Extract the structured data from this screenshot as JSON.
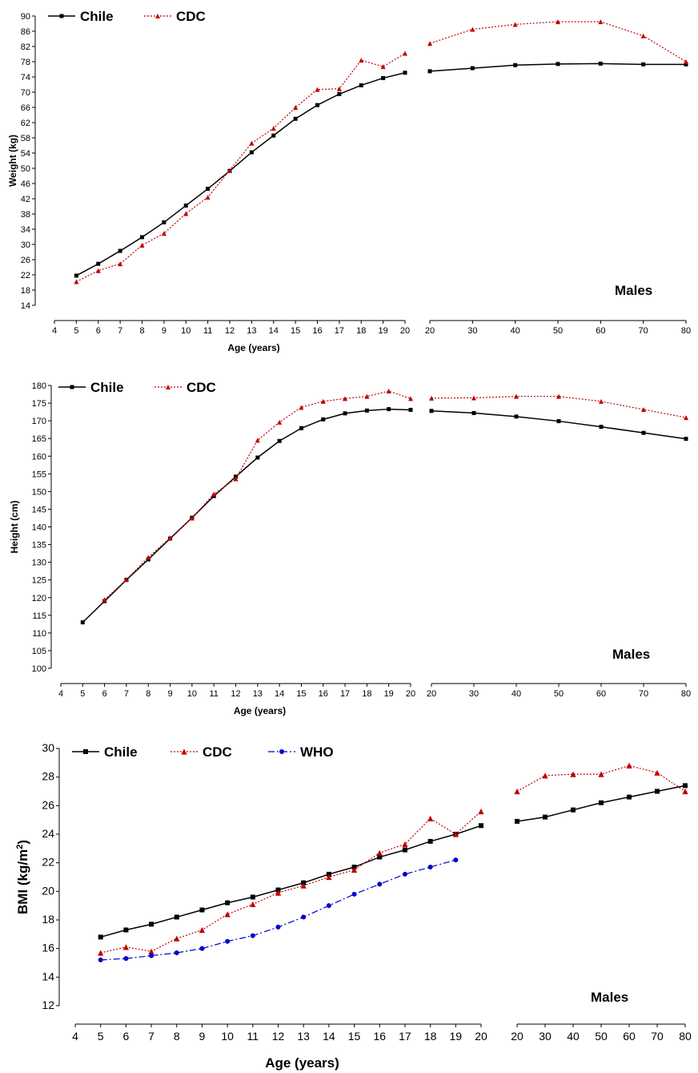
{
  "chart_data": [
    {
      "type": "line",
      "id": "weight",
      "ylabel": "Weight (kg)",
      "xlabel": "Age (years)",
      "annotation": "Males",
      "ylim": [
        14,
        90
      ],
      "yticks": [
        "14",
        "18",
        "22",
        "26",
        "30",
        "34",
        "38",
        "42",
        "46",
        "50",
        "54",
        "58",
        "62",
        "66",
        "70",
        "74",
        "78",
        "82",
        "86",
        "90"
      ],
      "left_xlim": [
        4,
        20
      ],
      "left_xticks": [
        "4",
        "5",
        "6",
        "7",
        "8",
        "9",
        "10",
        "11",
        "12",
        "13",
        "14",
        "15",
        "16",
        "17",
        "18",
        "19",
        "20"
      ],
      "right_xlim": [
        20,
        80
      ],
      "right_xticks": [
        "20",
        "30",
        "40",
        "50",
        "60",
        "70",
        "80"
      ],
      "series": [
        {
          "name": "Chile",
          "color": "#000000",
          "marker": "square",
          "dash": "solid",
          "left": {
            "x": [
              5,
              6,
              7,
              8,
              9,
              10,
              11,
              12,
              13,
              14,
              15,
              16,
              17,
              18,
              19,
              20
            ],
            "y": [
              21.8,
              24.9,
              28.3,
              31.9,
              35.8,
              40.2,
              44.6,
              49.3,
              54.2,
              58.6,
              63,
              66.6,
              69.5,
              71.8,
              73.7,
              75.1
            ]
          },
          "right": {
            "x": [
              20,
              30,
              40,
              50,
              60,
              70,
              80
            ],
            "y": [
              75.5,
              76.3,
              77.1,
              77.4,
              77.5,
              77.3,
              77.3
            ]
          }
        },
        {
          "name": "CDC",
          "color": "#c00000",
          "marker": "triangle",
          "dash": "dotted",
          "left": {
            "x": [
              5,
              6,
              7,
              8,
              9,
              10,
              11,
              12,
              13,
              14,
              15,
              16,
              17,
              18,
              19,
              20
            ],
            "y": [
              20.2,
              23.1,
              24.9,
              29.8,
              32.9,
              38.1,
              42.4,
              49.5,
              56.6,
              60.5,
              66,
              70.7,
              70.9,
              78.4,
              76.7,
              80.2
            ]
          },
          "right": {
            "x": [
              20,
              30,
              40,
              50,
              60,
              70,
              80
            ],
            "y": [
              82.8,
              86.5,
              87.8,
              88.5,
              88.5,
              84.8,
              78
            ]
          }
        }
      ]
    },
    {
      "type": "line",
      "id": "height",
      "ylabel": "Height (cm)",
      "xlabel": "Age (years)",
      "annotation": "Males",
      "ylim": [
        100,
        180
      ],
      "yticks": [
        "100",
        "105",
        "110",
        "115",
        "120",
        "125",
        "130",
        "135",
        "140",
        "145",
        "150",
        "155",
        "160",
        "165",
        "170",
        "175",
        "180"
      ],
      "left_xlim": [
        4,
        20
      ],
      "left_xticks": [
        "4",
        "5",
        "6",
        "7",
        "8",
        "9",
        "10",
        "11",
        "12",
        "13",
        "14",
        "15",
        "16",
        "17",
        "18",
        "19",
        "20"
      ],
      "right_xlim": [
        20,
        80
      ],
      "right_xticks": [
        "20",
        "30",
        "40",
        "50",
        "60",
        "70",
        "80"
      ],
      "series": [
        {
          "name": "Chile",
          "color": "#000000",
          "marker": "square",
          "dash": "solid",
          "left": {
            "x": [
              5,
              6,
              7,
              8,
              9,
              10,
              11,
              12,
              13,
              14,
              15,
              16,
              17,
              18,
              19,
              20
            ],
            "y": [
              113,
              119,
              125,
              130.8,
              136.7,
              142.6,
              148.7,
              154.2,
              159.6,
              164.3,
              167.9,
              170.4,
              172.1,
              172.9,
              173.3,
              173.1
            ]
          },
          "right": {
            "x": [
              20,
              30,
              40,
              50,
              60,
              70,
              80
            ],
            "y": [
              172.8,
              172.2,
              171.2,
              169.9,
              168.3,
              166.6,
              164.9
            ]
          }
        },
        {
          "name": "CDC",
          "color": "#c00000",
          "marker": "triangle",
          "dash": "dotted",
          "left": {
            "x": [
              6,
              7,
              8,
              9,
              10,
              11,
              12,
              13,
              14,
              15,
              16,
              17,
              18,
              19,
              20
            ],
            "y": [
              119.4,
              125.1,
              131.4,
              136.9,
              142.5,
              149.3,
              153.6,
              164.5,
              169.6,
              173.8,
              175.5,
              176.3,
              176.9,
              178.4,
              176.3
            ]
          },
          "right": {
            "x": [
              20,
              30,
              40,
              50,
              60,
              70,
              80
            ],
            "y": [
              176.4,
              176.5,
              176.9,
              176.9,
              175.5,
              173.2,
              170.9
            ]
          }
        }
      ]
    },
    {
      "type": "line",
      "id": "bmi",
      "ylabel": "BMI (kg/m",
      "ylabel_sup": "2",
      "ylabel_end": ")",
      "xlabel": "Age (years)",
      "annotation": "Males",
      "ylim": [
        12,
        30
      ],
      "yticks": [
        "12",
        "14",
        "16",
        "18",
        "20",
        "22",
        "24",
        "26",
        "28",
        "30"
      ],
      "left_xlim": [
        4,
        20
      ],
      "left_xticks": [
        "4",
        "5",
        "6",
        "7",
        "8",
        "9",
        "10",
        "11",
        "12",
        "13",
        "14",
        "15",
        "16",
        "17",
        "18",
        "19",
        "20"
      ],
      "right_xlim": [
        20,
        80
      ],
      "right_xticks": [
        "20",
        "30",
        "40",
        "50",
        "60",
        "70",
        "80"
      ],
      "series": [
        {
          "name": "Chile",
          "color": "#000000",
          "marker": "square",
          "dash": "solid",
          "left": {
            "x": [
              5,
              6,
              7,
              8,
              9,
              10,
              11,
              12,
              13,
              14,
              15,
              16,
              17,
              18,
              19,
              20
            ],
            "y": [
              16.8,
              17.3,
              17.7,
              18.2,
              18.7,
              19.2,
              19.6,
              20.1,
              20.6,
              21.2,
              21.7,
              22.4,
              22.9,
              23.5,
              24,
              24.6
            ]
          },
          "right": {
            "x": [
              20,
              30,
              40,
              50,
              60,
              70,
              80
            ],
            "y": [
              24.9,
              25.2,
              25.7,
              26.2,
              26.6,
              27,
              27.4
            ]
          }
        },
        {
          "name": "CDC",
          "color": "#c00000",
          "marker": "triangle",
          "dash": "dotted",
          "left": {
            "x": [
              5,
              6,
              7,
              8,
              9,
              10,
              11,
              12,
              13,
              14,
              15,
              16,
              17,
              18,
              19,
              20
            ],
            "y": [
              15.7,
              16.1,
              15.8,
              16.7,
              17.3,
              18.4,
              19.1,
              19.9,
              20.4,
              21,
              21.5,
              22.7,
              23.3,
              25.1,
              24,
              25.6
            ]
          },
          "right": {
            "x": [
              20,
              30,
              40,
              50,
              60,
              70,
              80
            ],
            "y": [
              27,
              28.1,
              28.2,
              28.2,
              28.8,
              28.3,
              27
            ]
          }
        },
        {
          "name": "WHO",
          "color": "#0000cc",
          "marker": "circle",
          "dash": "dashdot",
          "left": {
            "x": [
              5,
              6,
              7,
              8,
              9,
              10,
              11,
              12,
              13,
              14,
              15,
              16,
              17,
              18,
              19
            ],
            "y": [
              15.2,
              15.3,
              15.5,
              15.7,
              16,
              16.5,
              16.9,
              17.5,
              18.2,
              19,
              19.8,
              20.5,
              21.2,
              21.7,
              22.2
            ]
          }
        }
      ]
    }
  ]
}
